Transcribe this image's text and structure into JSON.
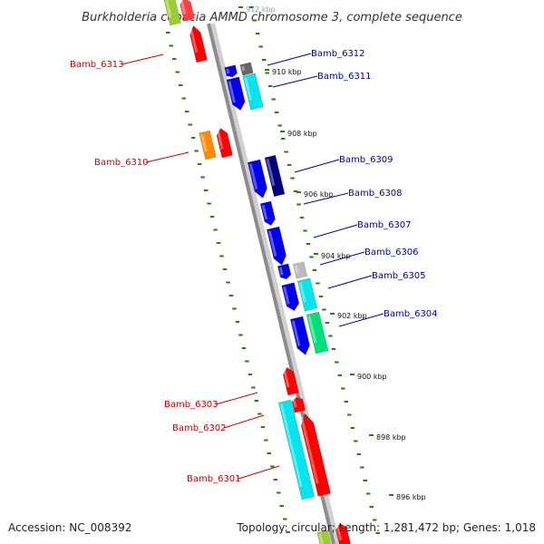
{
  "header": {
    "title": "Burkholderia cepacia AMMD chromosome 3, complete sequence"
  },
  "footer": {
    "accession": "Accession: NC_008392",
    "summary": "Topology: circular; Length: 1,281,472 bp; Genes: 1,018"
  },
  "colors": {
    "backbone": "#8c8c8c",
    "tick": "#2e7d14",
    "left_label": "#cc0000",
    "right_label": "#000099"
  },
  "kbp_marks": [
    "912 kbp",
    "910 kbp",
    "908 kbp",
    "906 kbp",
    "904 kbp",
    "902 kbp",
    "900 kbp",
    "898 kbp",
    "896 kbp"
  ],
  "genes_left": [
    {
      "label": "Bamb_6313",
      "color": "#ff0000"
    },
    {
      "label": "Bamb_6310",
      "color": "#ff8c00"
    },
    {
      "label": "Bamb_6303",
      "color": "#ff0000"
    },
    {
      "label": "Bamb_6302",
      "color": "#ff0000"
    },
    {
      "label": "Bamb_6301",
      "color": "#00e5ee"
    }
  ],
  "genes_right": [
    {
      "label": "Bamb_6312",
      "color": "#666666"
    },
    {
      "label": "Bamb_6311",
      "color": "#00e5ee"
    },
    {
      "label": "Bamb_6309",
      "color": "#000080"
    },
    {
      "label": "Bamb_6308",
      "color": "#0000ee"
    },
    {
      "label": "Bamb_6307",
      "color": "#0000ee"
    },
    {
      "label": "Bamb_6306",
      "color": "#bbbbbb"
    },
    {
      "label": "Bamb_6305",
      "color": "#00e5ee"
    },
    {
      "label": "Bamb_6304",
      "color": "#00e07a"
    }
  ]
}
